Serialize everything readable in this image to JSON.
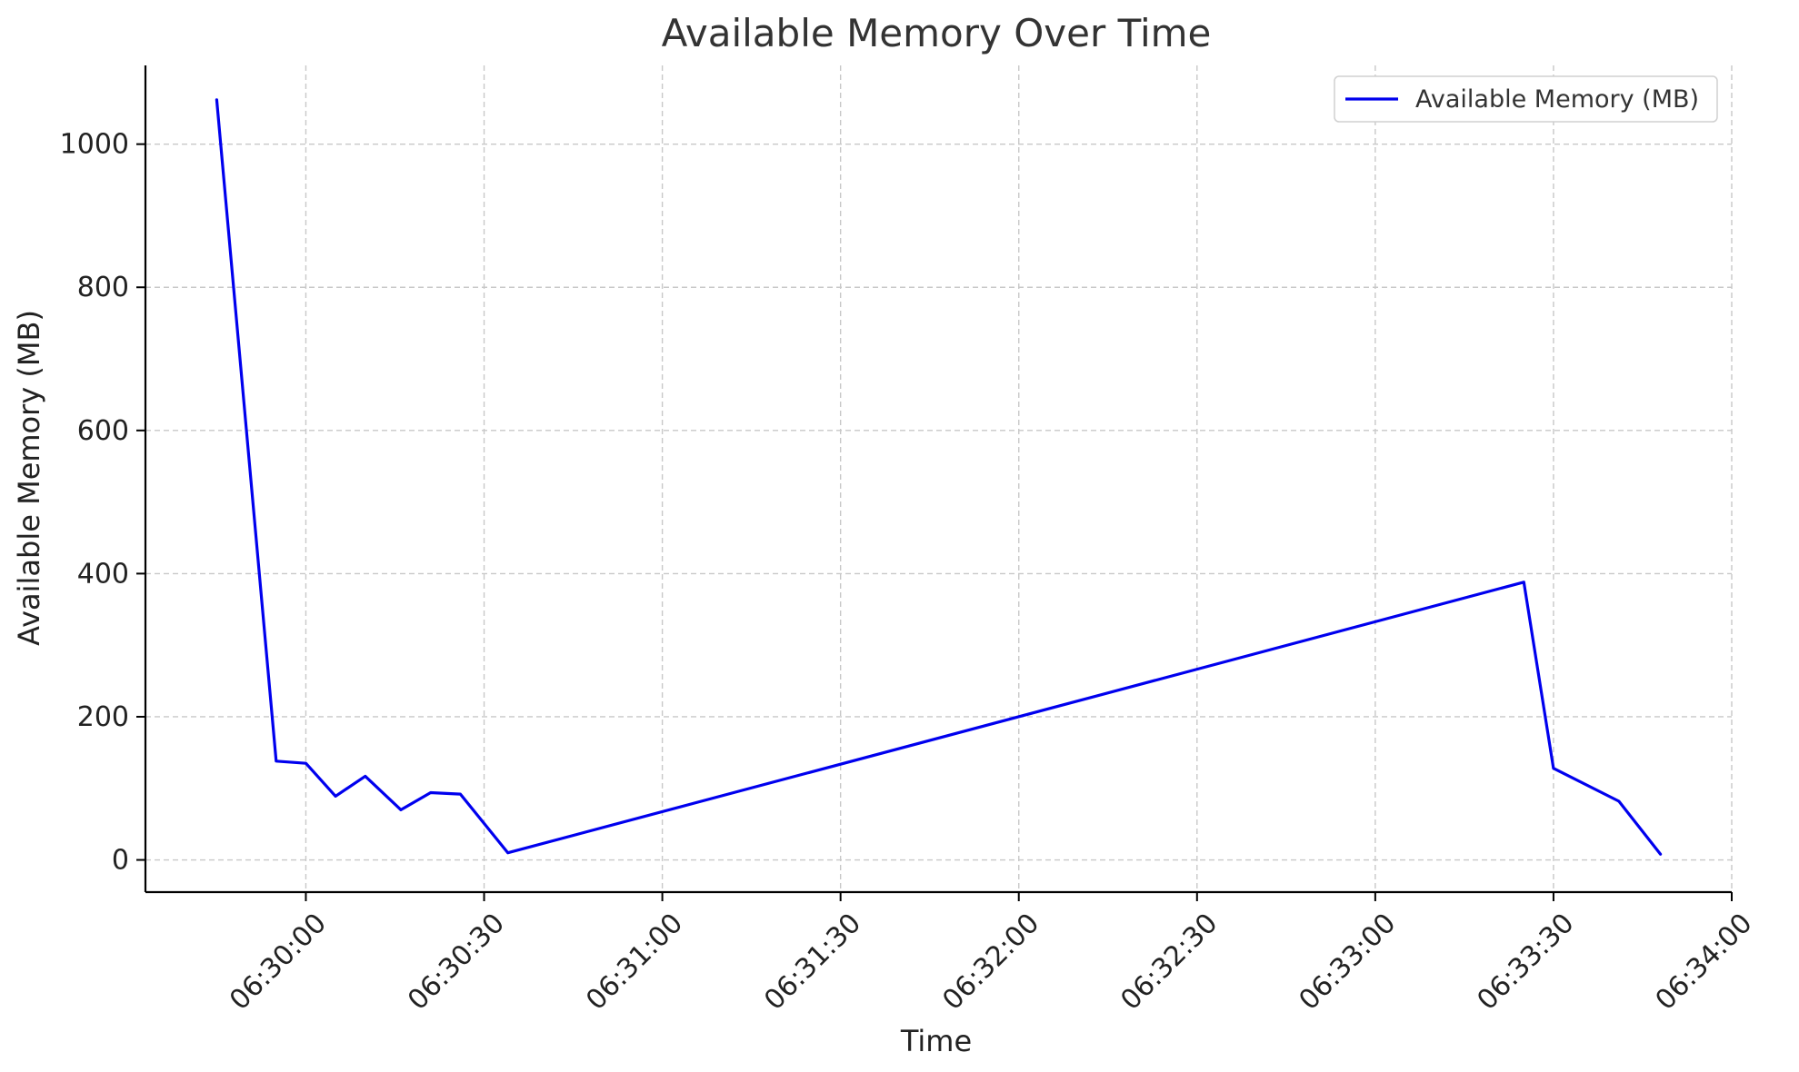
{
  "chart_data": {
    "type": "line",
    "title": "Available Memory Over Time",
    "xlabel": "Time",
    "ylabel": "Available Memory (MB)",
    "x_type": "time",
    "x_ticks": [
      "06:30:00",
      "06:30:30",
      "06:31:00",
      "06:31:30",
      "06:32:00",
      "06:32:30",
      "06:33:00",
      "06:33:30",
      "06:34:00"
    ],
    "y_ticks": [
      0,
      200,
      400,
      600,
      800,
      1000
    ],
    "xlim": [
      "06:29:33",
      "06:34:00"
    ],
    "ylim": [
      -45,
      1110
    ],
    "grid": true,
    "legend_position": "top-right",
    "series": [
      {
        "name": "Available Memory (MB)",
        "color": "#0000ee",
        "x": [
          "06:29:45",
          "06:29:55",
          "06:30:00",
          "06:30:05",
          "06:30:10",
          "06:30:16",
          "06:30:21",
          "06:30:26",
          "06:30:34",
          "06:33:25",
          "06:33:30",
          "06:33:41",
          "06:33:48"
        ],
        "y": [
          1062,
          138,
          135,
          89,
          117,
          70,
          94,
          92,
          10,
          388,
          128,
          82,
          8
        ]
      }
    ]
  }
}
